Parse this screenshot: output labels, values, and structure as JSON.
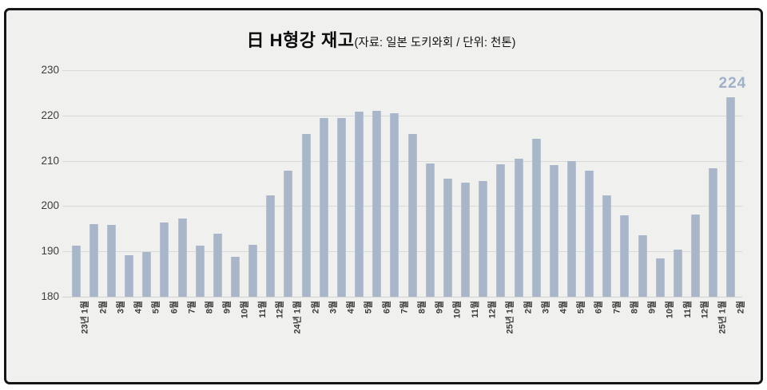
{
  "chart_data": {
    "type": "bar",
    "title": "日 H형강 재고",
    "subtitle": "(자료: 일본 도키와회 / 단위: 천톤)",
    "categories": [
      "23년 1월",
      "2월",
      "3월",
      "4월",
      "5월",
      "6월",
      "7월",
      "8월",
      "9월",
      "10월",
      "11월",
      "12월",
      "24년 1월",
      "2월",
      "3월",
      "4월",
      "5월",
      "6월",
      "7월",
      "8월",
      "9월",
      "10월",
      "11월",
      "12월",
      "25년 1월",
      "2월",
      "3월",
      "4월",
      "5월",
      "6월",
      "7월",
      "8월",
      "9월",
      "10월",
      "11월",
      "12월",
      "25년 1월",
      "2월"
    ],
    "values": [
      191.3,
      196.0,
      195.9,
      189.2,
      189.9,
      196.4,
      197.3,
      191.2,
      193.9,
      188.8,
      191.4,
      202.3,
      207.8,
      216.0,
      219.4,
      219.5,
      220.8,
      221.0,
      220.5,
      216.0,
      209.4,
      206.0,
      205.2,
      205.5,
      209.3,
      210.5,
      214.9,
      209.1,
      210.0,
      207.8,
      202.3,
      198.0,
      193.5,
      188.4,
      190.4,
      198.2,
      208.3,
      224.0
    ],
    "ylim": [
      180,
      230
    ],
    "yticks": [
      230,
      220,
      210,
      200,
      190,
      180
    ],
    "grid": "horizontal-only",
    "legend": "none",
    "last_value_label": "224",
    "bar_color": "#a9b6ca",
    "last_value_color": "#9fb0c8"
  }
}
